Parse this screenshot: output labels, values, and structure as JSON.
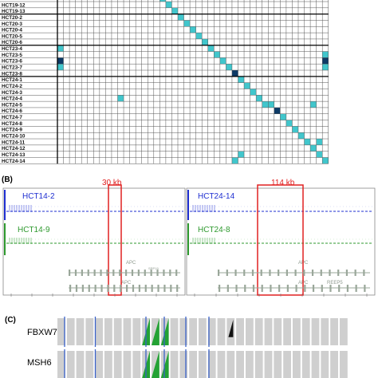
{
  "panelA": {
    "row_labels": [
      "HCT19-12",
      "HCT19-13",
      "HCT20-2",
      "HCT20-3",
      "HCT20-4",
      "HCT20-5",
      "HCT20-6",
      "HCT23-4",
      "HCT23-5",
      "HCT23-6",
      "HCT23-7",
      "HCT23-8",
      "HCT24-1",
      "HCT24-2",
      "HCT24-3",
      "HCT24-4",
      "HCT24-5",
      "HCT24-6",
      "HCT24-7",
      "HCT24-8",
      "HCT24-9",
      "HCT24-10",
      "HCT24-11",
      "HCT24-12",
      "HCT24-13",
      "HCT24-14"
    ],
    "num_cols": 26,
    "cells": [
      {
        "r": -1,
        "c": 17,
        "level": "light"
      },
      {
        "r": 0,
        "c": 18,
        "level": "light"
      },
      {
        "r": 1,
        "c": 19,
        "level": "light"
      },
      {
        "r": 2,
        "c": 20,
        "level": "light"
      },
      {
        "r": 3,
        "c": 21,
        "level": "light"
      },
      {
        "r": 4,
        "c": 22,
        "level": "light"
      },
      {
        "r": 5,
        "c": 23,
        "level": "light"
      },
      {
        "r": 6,
        "c": 24,
        "level": "light"
      },
      {
        "r": 7,
        "c": 25,
        "level": "light"
      },
      {
        "r": 8,
        "c": 26,
        "level": "light"
      },
      {
        "r": 9,
        "c": 27,
        "level": "light"
      },
      {
        "r": 10,
        "c": 28,
        "level": "light"
      },
      {
        "r": 11,
        "c": 29,
        "level": "dark"
      },
      {
        "r": 12,
        "c": 30,
        "level": "light"
      },
      {
        "r": 13,
        "c": 31,
        "level": "light"
      },
      {
        "r": 14,
        "c": 32,
        "level": "light"
      },
      {
        "r": 15,
        "c": 33,
        "level": "light"
      },
      {
        "r": 16,
        "c": 34,
        "level": "light"
      },
      {
        "r": 16,
        "c": 35,
        "level": "light"
      },
      {
        "r": 17,
        "c": 36,
        "level": "dark"
      },
      {
        "r": 18,
        "c": 37,
        "level": "light"
      },
      {
        "r": 19,
        "c": 38,
        "level": "light"
      },
      {
        "r": 20,
        "c": 39,
        "level": "light"
      },
      {
        "r": 21,
        "c": 40,
        "level": "light"
      },
      {
        "r": 22,
        "c": 41,
        "level": "light"
      },
      {
        "r": 23,
        "c": 42,
        "level": "light"
      },
      {
        "r": 24,
        "c": 43,
        "level": "light"
      },
      {
        "r": 25,
        "c": 44,
        "level": "light"
      },
      {
        "r": 7,
        "c": 0,
        "level": "light"
      },
      {
        "r": 9,
        "c": 0,
        "level": "dark"
      },
      {
        "r": 10,
        "c": 0,
        "level": "light"
      },
      {
        "r": 8,
        "c": 44,
        "level": "light"
      },
      {
        "r": 9,
        "c": 44,
        "level": "dark"
      },
      {
        "r": 10,
        "c": 44,
        "level": "light"
      },
      {
        "r": 15,
        "c": 10,
        "level": "light"
      },
      {
        "r": 16,
        "c": 42,
        "level": "light"
      },
      {
        "r": 22,
        "c": 43,
        "level": "light"
      },
      {
        "r": 24,
        "c": 30,
        "level": "light"
      },
      {
        "r": 25,
        "c": 29,
        "level": "light"
      }
    ],
    "colors": {
      "light": "#41c6cc",
      "dark": "#0d3a66",
      "grid": "#555555"
    }
  },
  "panelB": {
    "label": "(B)",
    "left": {
      "sample1": "HCT14-2",
      "sample2": "HCT14-9",
      "box_label": "30 kb",
      "gene1": "APC",
      "gene2": "APC",
      "gene3": "SRP19"
    },
    "right": {
      "sample1": "HCT24-14",
      "sample2": "HCT24-8",
      "box_label": "114 kb",
      "gene1": "APC",
      "gene2": "APC",
      "gene3": "REEP5"
    },
    "colors": {
      "blue": "#1f2fd1",
      "green": "#2f9a2f",
      "red": "#e02020",
      "gene": "#9aa79a"
    }
  },
  "panelC": {
    "label": "(C)",
    "genes": [
      "FBXW7",
      "MSH6"
    ],
    "colors": {
      "bar": "#cfcfcf",
      "blue": "#3a62c8",
      "green": "#23a234",
      "black": "#111111"
    }
  }
}
